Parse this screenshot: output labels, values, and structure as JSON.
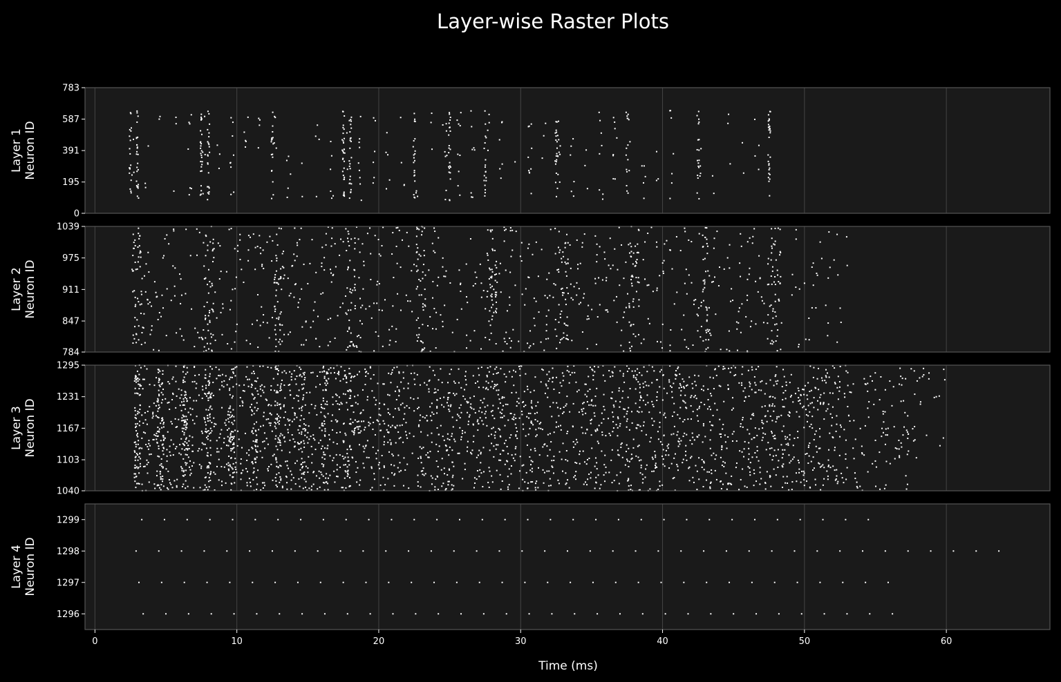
{
  "chart_data": {
    "type": "scatter",
    "title": "Layer-wise Raster Plots",
    "xlabel": "Time (ms)",
    "xlim": [
      -0.7,
      67.3
    ],
    "x_ticks": [
      0,
      10,
      20,
      30,
      40,
      50,
      60
    ],
    "grid": true,
    "colors": {
      "background": "#000000",
      "axes_face": "#1a1a1a",
      "spine": "#555555",
      "grid": "#444444",
      "spike": "#ffffff",
      "text": "#ffffff"
    },
    "panels": [
      {
        "name": "Layer 1",
        "ylabel": [
          "Layer 1",
          "Neuron ID"
        ],
        "ylim": [
          0,
          783
        ],
        "y_ticks": [
          0,
          195,
          391,
          587,
          783
        ],
        "spike_summary": {
          "t_range": [
            2.5,
            47.6
          ],
          "neuron_range": [
            80,
            640
          ],
          "burst_times": [
            2.5,
            3.0,
            7.5,
            8.0,
            12.5,
            17.5,
            18.0,
            22.5,
            25.0,
            27.5,
            32.5,
            37.5,
            42.5,
            47.5
          ]
        }
      },
      {
        "name": "Layer 2",
        "ylabel": [
          "Layer 2",
          "Neuron ID"
        ],
        "ylim": [
          784,
          1039
        ],
        "y_ticks": [
          784,
          847,
          911,
          975,
          1039
        ],
        "spike_summary": {
          "t_range": [
            2.6,
            53.2
          ],
          "neuron_range": [
            784,
            1039
          ],
          "burst_times": [
            3,
            8,
            13,
            18,
            23,
            28,
            33,
            38,
            43,
            48
          ]
        }
      },
      {
        "name": "Layer 3",
        "ylabel": [
          "Layer 3",
          "Neuron ID"
        ],
        "ylim": [
          1040,
          1295
        ],
        "y_ticks": [
          1040,
          1103,
          1167,
          1231,
          1295
        ],
        "spike_summary": {
          "t_range": [
            2.7,
            60.0
          ],
          "neuron_range": [
            1040,
            1295
          ],
          "burst_times": [
            3.0,
            4.7,
            6.3,
            8.0,
            9.6,
            11.3,
            12.9,
            14.6,
            16.2,
            17.9
          ]
        }
      },
      {
        "name": "Layer 4",
        "ylabel": [
          "Layer 4",
          "Neuron ID"
        ],
        "ylim": [
          1295.5,
          1299.5
        ],
        "y_ticks": [
          1296,
          1297,
          1298,
          1299
        ],
        "neurons": [
          {
            "id": 1299,
            "t_start": 3.3,
            "period": 1.6,
            "t_end": 56.0
          },
          {
            "id": 1298,
            "t_start": 2.9,
            "period": 1.6,
            "t_end": 64.3
          },
          {
            "id": 1297,
            "t_start": 3.1,
            "period": 1.6,
            "t_end": 57.4
          },
          {
            "id": 1296,
            "t_start": 3.4,
            "period": 1.6,
            "t_end": 57.0
          }
        ]
      }
    ]
  }
}
